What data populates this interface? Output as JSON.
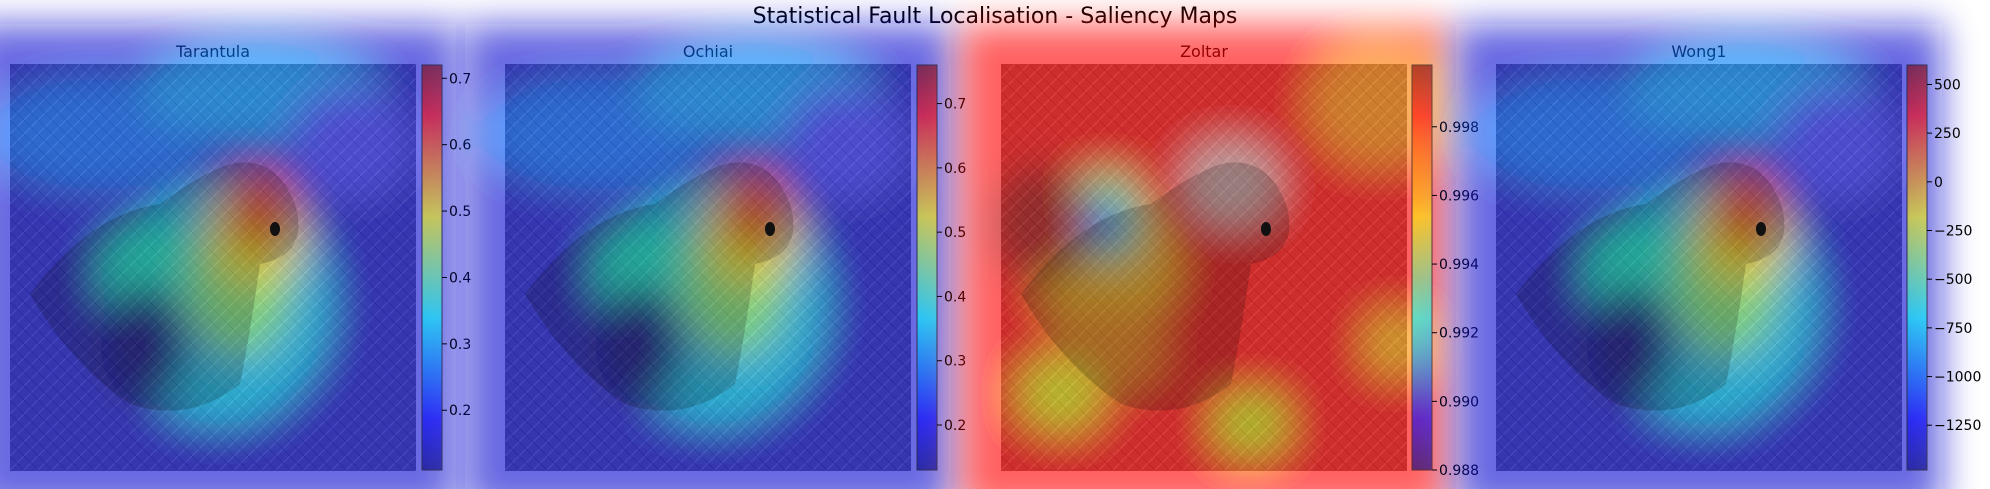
{
  "chart_data": [
    {
      "type": "heatmap",
      "title": "Tarantula",
      "colormap": "jet",
      "colorbar": {
        "min": 0.11,
        "max": 0.72,
        "ticks": [
          0.2,
          0.3,
          0.4,
          0.5,
          0.6,
          0.7
        ],
        "tick_labels": [
          "0.2",
          "0.3",
          "0.4",
          "0.5",
          "0.6",
          "0.7"
        ]
      },
      "pattern": "head-hotspot"
    },
    {
      "type": "heatmap",
      "title": "Ochiai",
      "colormap": "jet",
      "colorbar": {
        "min": 0.13,
        "max": 0.76,
        "ticks": [
          0.2,
          0.3,
          0.4,
          0.5,
          0.6,
          0.7
        ],
        "tick_labels": [
          "0.2",
          "0.3",
          "0.4",
          "0.5",
          "0.6",
          "0.7"
        ]
      },
      "pattern": "head-hotspot"
    },
    {
      "type": "heatmap",
      "title": "Zoltar",
      "colormap": "jet",
      "colorbar": {
        "min": 0.988,
        "max": 0.9998,
        "ticks": [
          0.988,
          0.99,
          0.992,
          0.994,
          0.996,
          0.998
        ],
        "tick_labels": [
          "0.988",
          "0.990",
          "0.992",
          "0.994",
          "0.996",
          "0.998"
        ]
      },
      "pattern": "inverted-cold-spot"
    },
    {
      "type": "heatmap",
      "title": "Wong1",
      "colormap": "jet",
      "colorbar": {
        "min": -1480,
        "max": 600,
        "ticks": [
          -1250,
          -1000,
          -750,
          -500,
          -250,
          0,
          250,
          500
        ],
        "tick_labels": [
          "−1250",
          "−1000",
          "−750",
          "−500",
          "−250",
          "0",
          "250",
          "500"
        ]
      },
      "pattern": "head-hotspot"
    }
  ],
  "suptitle": "Statistical Fault Localisation - Saliency Maps",
  "titles": [
    "Tarantula",
    "Ochiai",
    "Zoltar",
    "Wong1"
  ]
}
